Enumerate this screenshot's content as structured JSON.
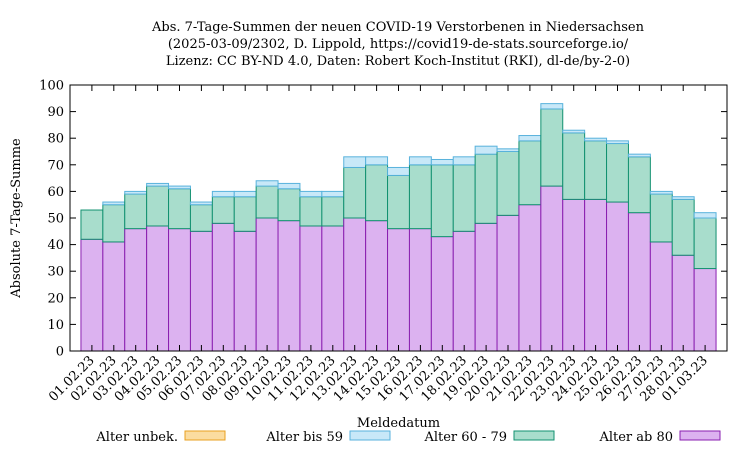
{
  "chart_data": {
    "type": "bar",
    "stacked": true,
    "title": [
      "Abs. 7-Tage-Summen der neuen COVID-19 Verstorbenen in Niedersachsen",
      "(2025-03-09/2302, D. Lippold, https://covid19-de-stats.sourceforge.io/",
      "Lizenz: CC BY-ND 4.0, Daten: Robert Koch-Institut (RKI), dl-de/by-2-0)"
    ],
    "xlabel": "Meldedatum",
    "ylabel": "Absolute 7-Tage-Summe",
    "ylim": [
      0,
      100
    ],
    "yticks": [
      0,
      10,
      20,
      30,
      40,
      50,
      60,
      70,
      80,
      90,
      100
    ],
    "grid": false,
    "legend_position": "bottom",
    "categories": [
      "01.02.23",
      "02.02.23",
      "03.02.23",
      "04.02.23",
      "05.02.23",
      "06.02.23",
      "07.02.23",
      "08.02.23",
      "09.02.23",
      "10.02.23",
      "11.02.23",
      "12.02.23",
      "13.02.23",
      "14.02.23",
      "15.02.23",
      "16.02.23",
      "17.02.23",
      "18.02.23",
      "19.02.23",
      "20.02.23",
      "21.02.23",
      "22.02.23",
      "23.02.23",
      "24.02.23",
      "25.02.23",
      "26.02.23",
      "27.02.23",
      "28.02.23",
      "01.03.23"
    ],
    "series": [
      {
        "name": "Alter ab 80",
        "color": "#dcb2f0",
        "edge": "#8a1fb0",
        "values": [
          42,
          41,
          46,
          47,
          46,
          45,
          48,
          45,
          50,
          49,
          47,
          47,
          50,
          49,
          46,
          46,
          43,
          45,
          48,
          51,
          55,
          62,
          57,
          57,
          56,
          52,
          41,
          36,
          31
        ]
      },
      {
        "name": "Alter 60 - 79",
        "color": "#a8ddcc",
        "edge": "#129170",
        "values": [
          11,
          14,
          13,
          15,
          15,
          10,
          10,
          13,
          12,
          12,
          11,
          11,
          19,
          21,
          20,
          24,
          27,
          25,
          26,
          24,
          24,
          29,
          25,
          22,
          22,
          21,
          18,
          21,
          19
        ]
      },
      {
        "name": "Alter bis 59",
        "color": "#c8e8f8",
        "edge": "#58b2dc",
        "values": [
          0,
          1,
          1,
          1,
          1,
          1,
          2,
          2,
          2,
          2,
          2,
          2,
          4,
          3,
          3,
          3,
          2,
          3,
          3,
          1,
          2,
          2,
          1,
          1,
          1,
          1,
          1,
          1,
          2
        ]
      },
      {
        "name": "Alter unbek.",
        "color": "#fbdca0",
        "edge": "#e8a020",
        "values": [
          0,
          0,
          0,
          0,
          0,
          0,
          0,
          0,
          0,
          0,
          0,
          0,
          0,
          0,
          0,
          0,
          0,
          0,
          0,
          0,
          0,
          0,
          0,
          0,
          0,
          0,
          0,
          0,
          0
        ]
      }
    ],
    "legend_order": [
      "Alter unbek.",
      "Alter bis 59",
      "Alter 60 - 79",
      "Alter ab 80"
    ]
  }
}
